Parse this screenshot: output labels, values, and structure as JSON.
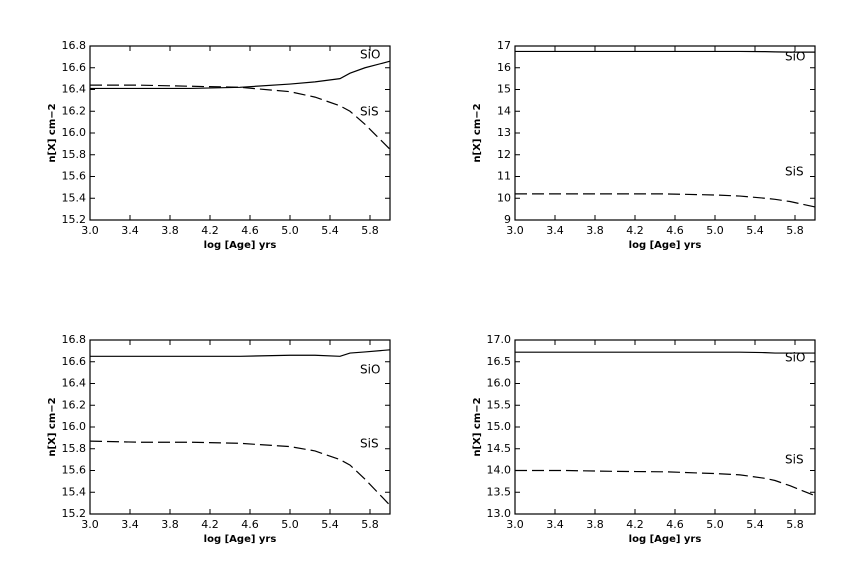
{
  "chart_data": [
    {
      "type": "line",
      "xlabel": "log [Age] yrs",
      "ylabel": "n[X] cm−2",
      "x": [
        3.0,
        3.5,
        4.0,
        4.5,
        5.0,
        5.25,
        5.5,
        5.6,
        5.75,
        6.0
      ],
      "series": [
        {
          "name": "SiO",
          "color": "#000000",
          "style": "solid",
          "values": [
            16.41,
            16.41,
            16.41,
            16.42,
            16.45,
            16.47,
            16.5,
            16.55,
            16.6,
            16.66
          ]
        },
        {
          "name": "SiS",
          "color": "#000000",
          "style": "dashed",
          "values": [
            16.44,
            16.44,
            16.43,
            16.42,
            16.38,
            16.33,
            16.25,
            16.2,
            16.08,
            15.85
          ]
        }
      ],
      "xlim": [
        3.0,
        6.0
      ],
      "xticks": [
        {
          "value": 3.0,
          "label": "3.0"
        },
        3.4,
        3.8,
        4.2,
        4.6,
        {
          "value": 5.0,
          "label": "5.0"
        },
        5.4,
        5.8
      ],
      "ylim": [
        15.2,
        16.8
      ],
      "yticks": [
        15.2,
        15.4,
        15.6,
        15.8,
        {
          "value": 16.0,
          "label": "16.0"
        },
        16.2,
        16.4,
        16.6,
        16.8
      ]
    },
    {
      "type": "line",
      "xlabel": "log [Age] yrs",
      "ylabel": "n[X] cm−2",
      "x": [
        3.0,
        3.5,
        4.0,
        4.5,
        5.0,
        5.25,
        5.5,
        5.6,
        5.75,
        6.0
      ],
      "series": [
        {
          "name": "SiO",
          "color": "#000000",
          "style": "solid",
          "values": [
            16.75,
            16.75,
            16.75,
            16.75,
            16.75,
            16.75,
            16.74,
            16.73,
            16.72,
            16.72
          ]
        },
        {
          "name": "SiS",
          "color": "#000000",
          "style": "dashed",
          "values": [
            10.2,
            10.2,
            10.2,
            10.2,
            10.15,
            10.1,
            10.0,
            9.95,
            9.85,
            9.6
          ]
        }
      ],
      "xlim": [
        3.0,
        6.0
      ],
      "xticks": [
        {
          "value": 3.0,
          "label": "3.0"
        },
        3.4,
        3.8,
        4.2,
        4.6,
        {
          "value": 5.0,
          "label": "5.0"
        },
        5.4,
        5.8
      ],
      "ylim": [
        9,
        17
      ],
      "yticks": [
        9,
        10,
        11,
        12,
        13,
        14,
        15,
        16,
        17
      ]
    },
    {
      "type": "line",
      "xlabel": "log [Age] yrs",
      "ylabel": "n[X] cm−2",
      "x": [
        3.0,
        3.5,
        4.0,
        4.5,
        5.0,
        5.25,
        5.5,
        5.6,
        5.75,
        6.0
      ],
      "series": [
        {
          "name": "SiO",
          "color": "#000000",
          "style": "solid",
          "values": [
            16.65,
            16.65,
            16.65,
            16.65,
            16.66,
            16.66,
            16.65,
            16.68,
            16.69,
            16.71
          ]
        },
        {
          "name": "SiS",
          "color": "#000000",
          "style": "dashed",
          "values": [
            15.87,
            15.86,
            15.86,
            15.85,
            15.82,
            15.78,
            15.7,
            15.65,
            15.52,
            15.28
          ]
        }
      ],
      "xlim": [
        3.0,
        6.0
      ],
      "xticks": [
        {
          "value": 3.0,
          "label": "3.0"
        },
        3.4,
        3.8,
        4.2,
        4.6,
        {
          "value": 5.0,
          "label": "5.0"
        },
        5.4,
        5.8
      ],
      "ylim": [
        15.2,
        16.8
      ],
      "yticks": [
        15.2,
        15.4,
        15.6,
        15.8,
        {
          "value": 16.0,
          "label": "16.0"
        },
        16.2,
        16.4,
        16.6,
        16.8
      ]
    },
    {
      "type": "line",
      "xlabel": "log [Age] yrs",
      "ylabel": "n[X] cm−2",
      "x": [
        3.0,
        3.5,
        4.0,
        4.5,
        5.0,
        5.25,
        5.5,
        5.6,
        5.75,
        6.0
      ],
      "series": [
        {
          "name": "SiO",
          "color": "#000000",
          "style": "solid",
          "values": [
            16.72,
            16.72,
            16.72,
            16.72,
            16.72,
            16.72,
            16.71,
            16.7,
            16.7,
            16.7
          ]
        },
        {
          "name": "SiS",
          "color": "#000000",
          "style": "dashed",
          "values": [
            14.0,
            14.0,
            13.98,
            13.97,
            13.93,
            13.9,
            13.82,
            13.77,
            13.65,
            13.42
          ]
        }
      ],
      "xlim": [
        3.0,
        6.0
      ],
      "xticks": [
        {
          "value": 3.0,
          "label": "3.0"
        },
        3.4,
        3.8,
        4.2,
        4.6,
        {
          "value": 5.0,
          "label": "5.0"
        },
        5.4,
        5.8
      ],
      "ylim": [
        13,
        17
      ],
      "yticks": [
        {
          "value": 13,
          "label": "13.0"
        },
        {
          "value": 13.5,
          "label": "13.5"
        },
        {
          "value": 14,
          "label": "14.0"
        },
        {
          "value": 14.5,
          "label": "14.5"
        },
        {
          "value": 15,
          "label": "15.0"
        },
        {
          "value": 15.5,
          "label": "15.5"
        },
        {
          "value": 16,
          "label": "16.0"
        },
        {
          "value": 16.5,
          "label": "16.5"
        },
        {
          "value": 17,
          "label": "17.0"
        }
      ]
    }
  ]
}
